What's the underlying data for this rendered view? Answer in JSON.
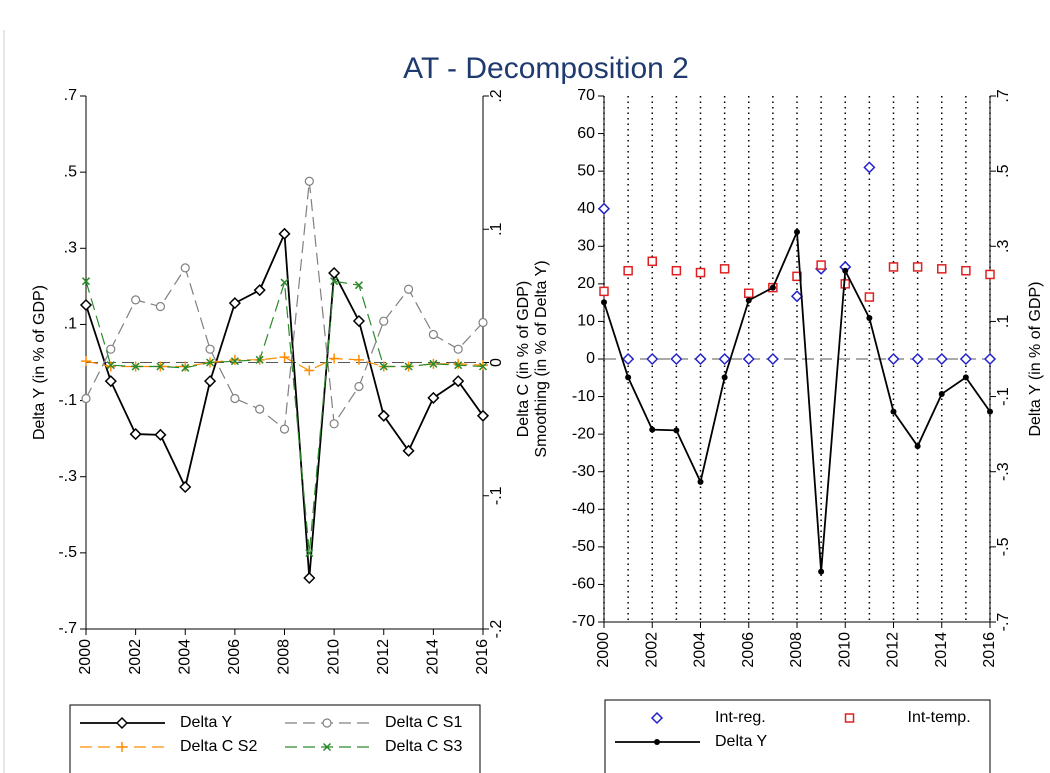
{
  "title": "AT - Decomposition 2",
  "chart_data": [
    {
      "type": "line",
      "ylabel": "Delta Y (in % of GDP)",
      "x": [
        2000,
        2001,
        2002,
        2003,
        2004,
        2005,
        2006,
        2007,
        2008,
        2009,
        2010,
        2011,
        2012,
        2013,
        2014,
        2015,
        2016
      ],
      "xlim": [
        2000,
        2016
      ],
      "xticks": [
        2000,
        2002,
        2004,
        2006,
        2008,
        2010,
        2012,
        2014,
        2016
      ],
      "ylim": [
        -0.7,
        0.7
      ],
      "yticks": [
        {
          "value": -0.7,
          "label": "-.7"
        },
        {
          "value": -0.5,
          "label": "-.5"
        },
        {
          "value": -0.3,
          "label": "-.3"
        },
        {
          "value": -0.1,
          "label": "-.1"
        },
        {
          "value": 0.1,
          "label": ".1"
        },
        {
          "value": 0.3,
          "label": ".3"
        },
        {
          "value": 0.5,
          "label": ".5"
        },
        {
          "value": 0.7,
          "label": ".7"
        }
      ],
      "y2lim": [
        -0.2,
        0.2
      ],
      "y2ticks": [
        {
          "value": -0.2,
          "label": "-.2"
        },
        {
          "value": -0.1,
          "label": "-.1"
        },
        0,
        {
          "value": 0.1,
          "label": ".1"
        },
        {
          "value": 0.2,
          "label": ".2"
        }
      ],
      "zero_line": true,
      "legend": "bottom",
      "series": [
        {
          "name": "Delta Y",
          "color": "#000000",
          "marker": "diamond",
          "line": true,
          "dash": false,
          "values": [
            0.151,
            -0.049,
            -0.188,
            -0.19,
            -0.327,
            -0.049,
            0.156,
            0.19,
            0.338,
            -0.566,
            0.235,
            0.109,
            -0.14,
            -0.232,
            -0.093,
            -0.049,
            -0.14
          ]
        },
        {
          "name": "Delta C S1",
          "color": "#808080",
          "marker": "circle",
          "line": true,
          "dash": true,
          "axis": "y2",
          "values": [
            -0.027,
            0.01,
            0.047,
            0.042,
            0.071,
            0.01,
            -0.027,
            -0.035,
            -0.05,
            0.136,
            -0.046,
            -0.018,
            0.031,
            0.055,
            0.021,
            0.01,
            0.03
          ]
        },
        {
          "name": "Delta C S2",
          "color": "#ff8c00",
          "marker": "plus",
          "line": true,
          "dash": true,
          "axis": "y2",
          "values": [
            0.001,
            -0.003,
            -0.003,
            -0.003,
            -0.003,
            0,
            0.002,
            0.002,
            0.004,
            -0.006,
            0.003,
            0.002,
            -0.003,
            -0.003,
            -0.001,
            -0.001,
            -0.002
          ]
        },
        {
          "name": "Delta C S3",
          "color": "#2a8a2a",
          "marker": "x",
          "line": true,
          "dash": true,
          "axis": "y2",
          "values": [
            0.061,
            -0.002,
            -0.003,
            -0.003,
            -0.004,
            0,
            0.001,
            0.002,
            0.06,
            -0.143,
            0.061,
            0.058,
            -0.003,
            -0.003,
            -0.001,
            -0.002,
            -0.003
          ]
        }
      ]
    },
    {
      "type": "line",
      "ylabel": [
        "Delta C (in % of GDP)",
        "Smoothing (in % of Delta Y)"
      ],
      "y2label": "Delta Y (in % of GDP)",
      "x": [
        2000,
        2001,
        2002,
        2003,
        2004,
        2005,
        2006,
        2007,
        2008,
        2009,
        2010,
        2011,
        2012,
        2013,
        2014,
        2015,
        2016
      ],
      "xlim": [
        2000,
        2016
      ],
      "xticks": [
        2000,
        2002,
        2004,
        2006,
        2008,
        2010,
        2012,
        2014,
        2016
      ],
      "ylim": [
        -70,
        70
      ],
      "yticks": [
        -70,
        -60,
        -50,
        -40,
        -30,
        -20,
        -10,
        0,
        10,
        20,
        30,
        40,
        50,
        60,
        70
      ],
      "y2lim": [
        -0.7,
        0.7
      ],
      "y2ticks": [
        {
          "value": -0.7,
          "label": "-.7"
        },
        {
          "value": -0.5,
          "label": "-.5"
        },
        {
          "value": -0.3,
          "label": "-.3"
        },
        {
          "value": -0.1,
          "label": "-.1"
        },
        {
          "value": 0.1,
          "label": ".1"
        },
        {
          "value": 0.3,
          "label": ".3"
        },
        {
          "value": 0.5,
          "label": ".5"
        },
        {
          "value": 0.7,
          "label": ".7"
        }
      ],
      "zero_line": true,
      "xlines": true,
      "legend": "bottom",
      "series": [
        {
          "name": "Int-reg.",
          "color": "#2222cc",
          "marker": "diamond",
          "line": false,
          "values": [
            40,
            0,
            0,
            0,
            0,
            0,
            0,
            0,
            16.7,
            24,
            24.5,
            51,
            0,
            0,
            0,
            0,
            0
          ]
        },
        {
          "name": "Int-temp.",
          "color": "#e02020",
          "marker": "square",
          "line": false,
          "values": [
            18,
            23.5,
            26,
            23.5,
            23,
            24,
            17.5,
            19,
            22,
            25,
            20,
            16.5,
            24.5,
            24.5,
            24,
            23.5,
            22.5
          ]
        },
        {
          "name": "Delta Y",
          "color": "#000000",
          "marker": "dot",
          "line": true,
          "dash": false,
          "axis": "y2",
          "values": [
            0.151,
            -0.049,
            -0.188,
            -0.19,
            -0.327,
            -0.049,
            0.156,
            0.19,
            0.338,
            -0.566,
            0.235,
            0.109,
            -0.14,
            -0.232,
            -0.093,
            -0.049,
            -0.14
          ]
        }
      ]
    }
  ]
}
